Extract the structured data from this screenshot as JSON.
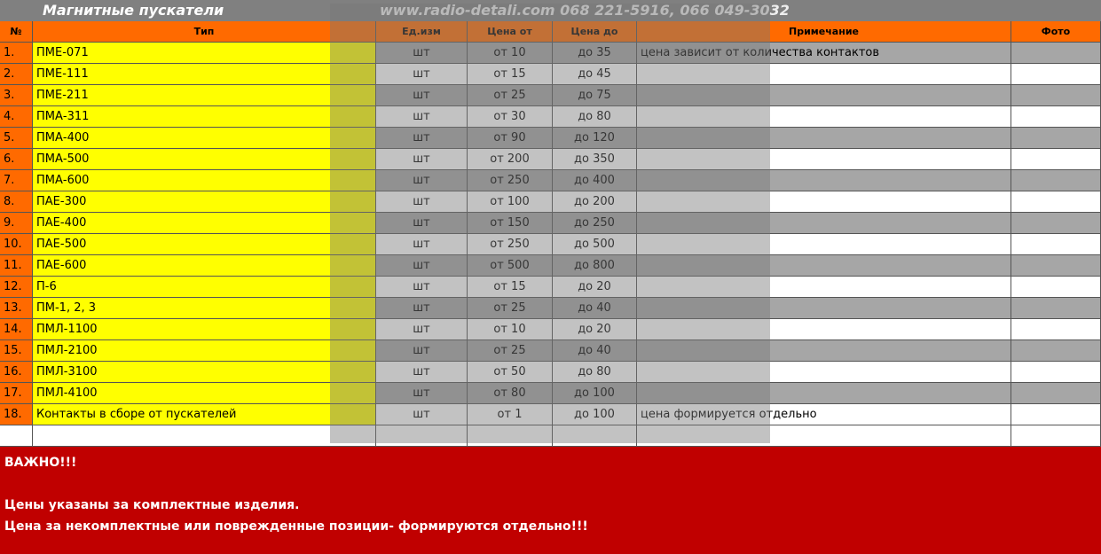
{
  "header": {
    "title": "Магнитные пускатели",
    "site": "www.radio-detali.com 068 221-5916, 066 049-3032"
  },
  "columns": [
    "№",
    "Тип",
    "Ед.изм",
    "Цена от",
    "Цена до",
    "Примечание",
    "Фото"
  ],
  "rows": [
    {
      "n": "1.",
      "type": "ПМЕ-071",
      "unit": "шт",
      "from": "от 10",
      "to": "до 35",
      "note": "цена зависит от количества контактов"
    },
    {
      "n": "2.",
      "type": "ПМЕ-111",
      "unit": "шт",
      "from": "от 15",
      "to": "до 45"
    },
    {
      "n": "3.",
      "type": "ПМЕ-211",
      "unit": "шт",
      "from": "от 25",
      "to": "до 75"
    },
    {
      "n": "4.",
      "type": "ПМА-311",
      "unit": "шт",
      "from": "от 30",
      "to": "до 80"
    },
    {
      "n": "5.",
      "type": "ПМА-400",
      "unit": "шт",
      "from": "от 90",
      "to": "до 120"
    },
    {
      "n": "6.",
      "type": "ПМА-500",
      "unit": "шт",
      "from": "от 200",
      "to": "до 350"
    },
    {
      "n": "7.",
      "type": "ПМА-600",
      "unit": "шт",
      "from": "от 250",
      "to": "до 400"
    },
    {
      "n": "8.",
      "type": "ПАЕ-300",
      "unit": "шт",
      "from": "от 100",
      "to": "до 200"
    },
    {
      "n": "9.",
      "type": "ПАЕ-400",
      "unit": "шт",
      "from": "от 150",
      "to": "до 250"
    },
    {
      "n": "10.",
      "type": "ПАЕ-500",
      "unit": "шт",
      "from": "от 250",
      "to": "до 500"
    },
    {
      "n": "11.",
      "type": "ПАЕ-600",
      "unit": "шт",
      "from": "от 500",
      "to": "до 800"
    },
    {
      "n": "12.",
      "type": "П-6",
      "unit": "шт",
      "from": "от 15",
      "to": "до 20"
    },
    {
      "n": "13.",
      "type": "ПМ-1, 2, 3",
      "unit": "шт",
      "from": "от 25",
      "to": "до 40"
    },
    {
      "n": "14.",
      "type": "ПМЛ-1100",
      "unit": "шт",
      "from": "от 10",
      "to": "до 20"
    },
    {
      "n": "15.",
      "type": "ПМЛ-2100",
      "unit": "шт",
      "from": "от 25",
      "to": "до 40"
    },
    {
      "n": "16.",
      "type": "ПМЛ-3100",
      "unit": "шт",
      "from": "от 50",
      "to": "до 80"
    },
    {
      "n": "17.",
      "type": "ПМЛ-4100",
      "unit": "шт",
      "from": "от 80",
      "to": "до 100"
    },
    {
      "n": "18.",
      "type": "Контакты в сборе от пускателей",
      "unit": "шт",
      "from": "от 1",
      "to": "до 100",
      "note": "цена формируется отдельно"
    }
  ],
  "notice": {
    "title": "ВАЖНО!!!",
    "lines": [
      "Цены указаны за комплектные изделия.",
      "Цена за некомплектные или поврежденные позиции- формируются отдельно!!!"
    ]
  }
}
